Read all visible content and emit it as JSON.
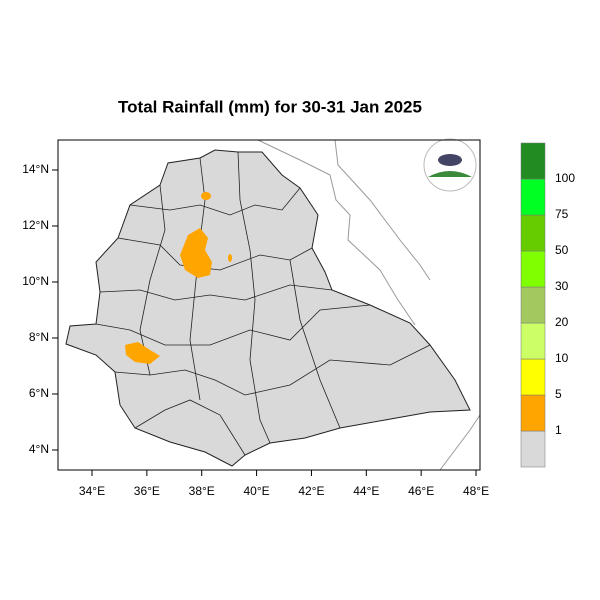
{
  "title": "Total Rainfall (mm) for 30-31 Jan 2025",
  "ticks": {
    "lon": [
      {
        "value": 34,
        "label": "34°E"
      },
      {
        "value": 36,
        "label": "36°E"
      },
      {
        "value": 38,
        "label": "38°E"
      },
      {
        "value": 40,
        "label": "40°E"
      },
      {
        "value": 42,
        "label": "42°E"
      },
      {
        "value": 44,
        "label": "44°E"
      },
      {
        "value": 46,
        "label": "46°E"
      },
      {
        "value": 48,
        "label": "48°E"
      }
    ],
    "lat": [
      {
        "value": 4,
        "label": "4°N"
      },
      {
        "value": 6,
        "label": "6°N"
      },
      {
        "value": 8,
        "label": "8°N"
      },
      {
        "value": 10,
        "label": "10°N"
      },
      {
        "value": 12,
        "label": "12°N"
      },
      {
        "value": 14,
        "label": "14°N"
      }
    ]
  },
  "legend": {
    "colors": [
      "#d9d9d9",
      "#ffa500",
      "#ffff00",
      "#ccff66",
      "#a3c860",
      "#80ff00",
      "#66cc00",
      "#00ff22",
      "#228b22"
    ],
    "labels": [
      1,
      5,
      10,
      20,
      30,
      50,
      75,
      100
    ]
  }
}
